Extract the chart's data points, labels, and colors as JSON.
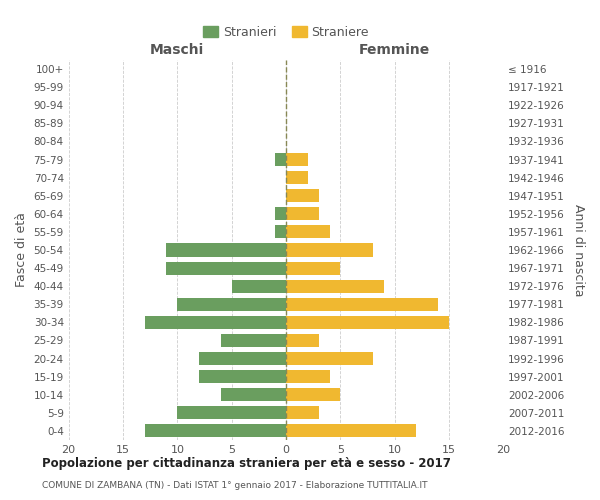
{
  "age_groups": [
    "0-4",
    "5-9",
    "10-14",
    "15-19",
    "20-24",
    "25-29",
    "30-34",
    "35-39",
    "40-44",
    "45-49",
    "50-54",
    "55-59",
    "60-64",
    "65-69",
    "70-74",
    "75-79",
    "80-84",
    "85-89",
    "90-94",
    "95-99",
    "100+"
  ],
  "birth_years": [
    "2012-2016",
    "2007-2011",
    "2002-2006",
    "1997-2001",
    "1992-1996",
    "1987-1991",
    "1982-1986",
    "1977-1981",
    "1972-1976",
    "1967-1971",
    "1962-1966",
    "1957-1961",
    "1952-1956",
    "1947-1951",
    "1942-1946",
    "1937-1941",
    "1932-1936",
    "1927-1931",
    "1922-1926",
    "1917-1921",
    "≤ 1916"
  ],
  "maschi": [
    13,
    10,
    6,
    8,
    8,
    6,
    13,
    10,
    5,
    11,
    11,
    1,
    1,
    0,
    0,
    1,
    0,
    0,
    0,
    0,
    0
  ],
  "femmine": [
    12,
    3,
    5,
    4,
    8,
    3,
    15,
    14,
    9,
    5,
    8,
    4,
    3,
    3,
    2,
    2,
    0,
    0,
    0,
    0,
    0
  ],
  "male_color": "#6a9e5f",
  "female_color": "#f0b830",
  "grid_color": "#cccccc",
  "center_line_color": "#888855",
  "title": "Popolazione per cittadinanza straniera per età e sesso - 2017",
  "subtitle": "COMUNE DI ZAMBANA (TN) - Dati ISTAT 1° gennaio 2017 - Elaborazione TUTTITALIA.IT",
  "ylabel_left": "Fasce di età",
  "ylabel_right": "Anni di nascita",
  "xlabel_left": "Maschi",
  "xlabel_right": "Femmine",
  "legend_stranieri": "Stranieri",
  "legend_straniere": "Straniere",
  "xlim": 20,
  "bar_height": 0.72,
  "bg_color": "#ffffff",
  "text_color": "#555555"
}
